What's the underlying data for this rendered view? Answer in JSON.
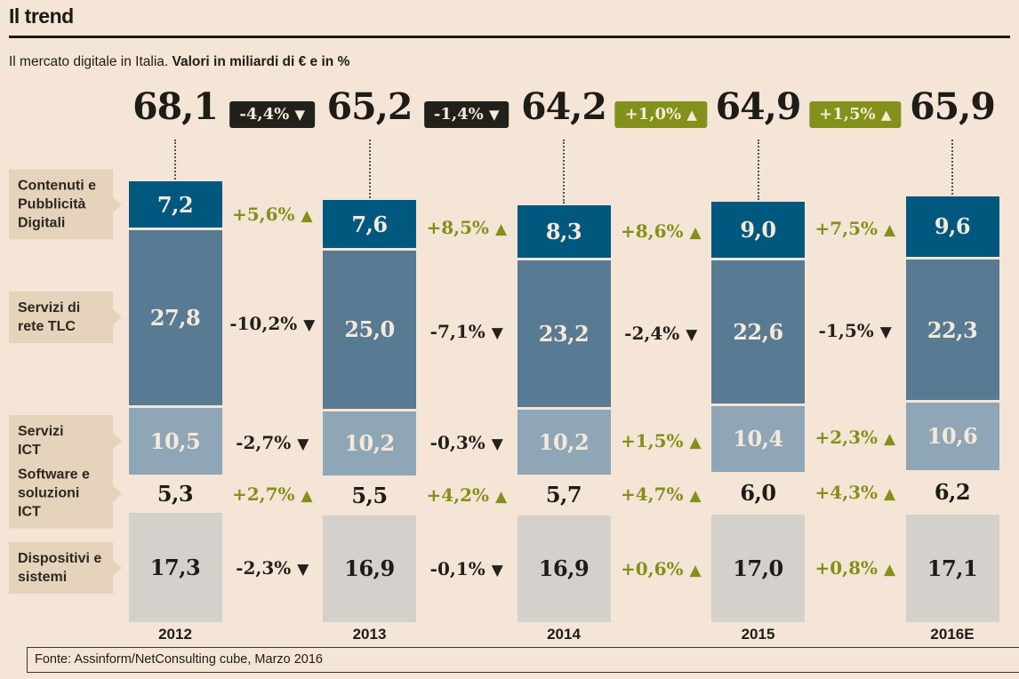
{
  "header": {
    "title": "Il trend",
    "subtitle_regular": "Il mercato digitale in Italia. ",
    "subtitle_bold": "Valori in miliardi di € e in %"
  },
  "footer": {
    "source": "Fonte: Assinform/NetConsulting cube, Marzo 2016"
  },
  "colors": {
    "background": "#f4e5d6",
    "chip_background": "#e6d3bb",
    "positive": "#839019",
    "negative": "#21201a",
    "cream_text": "#f4e9da",
    "dark_text": "#1d1c16"
  },
  "chart_data": {
    "type": "bar",
    "variant": "stacked",
    "title": "Il trend — Il mercato digitale in Italia",
    "unit": "miliardi di €",
    "legend_position": "left",
    "grid": false,
    "categories": [
      "2012",
      "2013",
      "2014",
      "2015",
      "2016E"
    ],
    "totals": {
      "labels": [
        "68,1",
        "65,2",
        "64,2",
        "64,9",
        "65,9"
      ],
      "values": [
        68.1,
        65.2,
        64.2,
        64.9,
        65.9
      ]
    },
    "total_changes": [
      {
        "label": "-4,4%",
        "direction": "down"
      },
      {
        "label": "-1,4%",
        "direction": "down"
      },
      {
        "label": "+1,0%",
        "direction": "up"
      },
      {
        "label": "+1,5%",
        "direction": "up"
      }
    ],
    "series": [
      {
        "name": "Contenuti e Pubblicità Digitali",
        "label_lines": [
          "Contenuti e",
          "Pubblicità",
          "Digitali"
        ],
        "color": "#00587f",
        "value_color": "cream",
        "values": [
          7.2,
          7.6,
          8.3,
          9.0,
          9.6
        ],
        "value_labels": [
          "7,2",
          "7,6",
          "8,3",
          "9,0",
          "9,6"
        ],
        "changes": [
          {
            "label": "+5,6%",
            "direction": "up"
          },
          {
            "label": "+8,5%",
            "direction": "up"
          },
          {
            "label": "+8,6%",
            "direction": "up"
          },
          {
            "label": "+7,5%",
            "direction": "up"
          }
        ]
      },
      {
        "name": "Servizi di rete TLC",
        "label_lines": [
          "Servizi di",
          "rete TLC"
        ],
        "color": "#587a92",
        "value_color": "cream",
        "values": [
          27.8,
          25.0,
          23.2,
          22.6,
          22.3
        ],
        "value_labels": [
          "27,8",
          "25,0",
          "23,2",
          "22,6",
          "22,3"
        ],
        "changes": [
          {
            "label": "-10,2%",
            "direction": "down"
          },
          {
            "label": "-7,1%",
            "direction": "down"
          },
          {
            "label": "-2,4%",
            "direction": "down"
          },
          {
            "label": "-1,5%",
            "direction": "down"
          }
        ]
      },
      {
        "name": "Servizi ICT",
        "label_lines": [
          "Servizi",
          "ICT"
        ],
        "color": "#8fa6b7",
        "value_color": "cream",
        "values": [
          10.5,
          10.2,
          10.2,
          10.4,
          10.6
        ],
        "value_labels": [
          "10,5",
          "10,2",
          "10,2",
          "10,4",
          "10,6"
        ],
        "changes": [
          {
            "label": "-2,7%",
            "direction": "down"
          },
          {
            "label": "-0,3%",
            "direction": "down"
          },
          {
            "label": "+1,5%",
            "direction": "up"
          },
          {
            "label": "+2,3%",
            "direction": "up"
          }
        ]
      },
      {
        "name": "Software e soluzioni ICT",
        "label_lines": [
          "Software e",
          "soluzioni ICT"
        ],
        "color": null,
        "value_color": "dark",
        "values": [
          5.3,
          5.5,
          5.7,
          6.0,
          6.2
        ],
        "value_labels": [
          "5,3",
          "5,5",
          "5,7",
          "6,0",
          "6,2"
        ],
        "changes": [
          {
            "label": "+2,7%",
            "direction": "up"
          },
          {
            "label": "+4,2%",
            "direction": "up"
          },
          {
            "label": "+4,7%",
            "direction": "up"
          },
          {
            "label": "+4,3%",
            "direction": "up"
          }
        ]
      },
      {
        "name": "Dispositivi e sistemi",
        "label_lines": [
          "Dispositivi e",
          "sistemi"
        ],
        "color": "#d4d1cc",
        "value_color": "dark",
        "values": [
          17.3,
          16.9,
          16.9,
          17.0,
          17.1
        ],
        "value_labels": [
          "17,3",
          "16,9",
          "16,9",
          "17,0",
          "17,1"
        ],
        "changes": [
          {
            "label": "-2,3%",
            "direction": "down"
          },
          {
            "label": "-0,1%",
            "direction": "down"
          },
          {
            "label": "+0,6%",
            "direction": "up"
          },
          {
            "label": "+0,8%",
            "direction": "up"
          }
        ]
      }
    ]
  }
}
